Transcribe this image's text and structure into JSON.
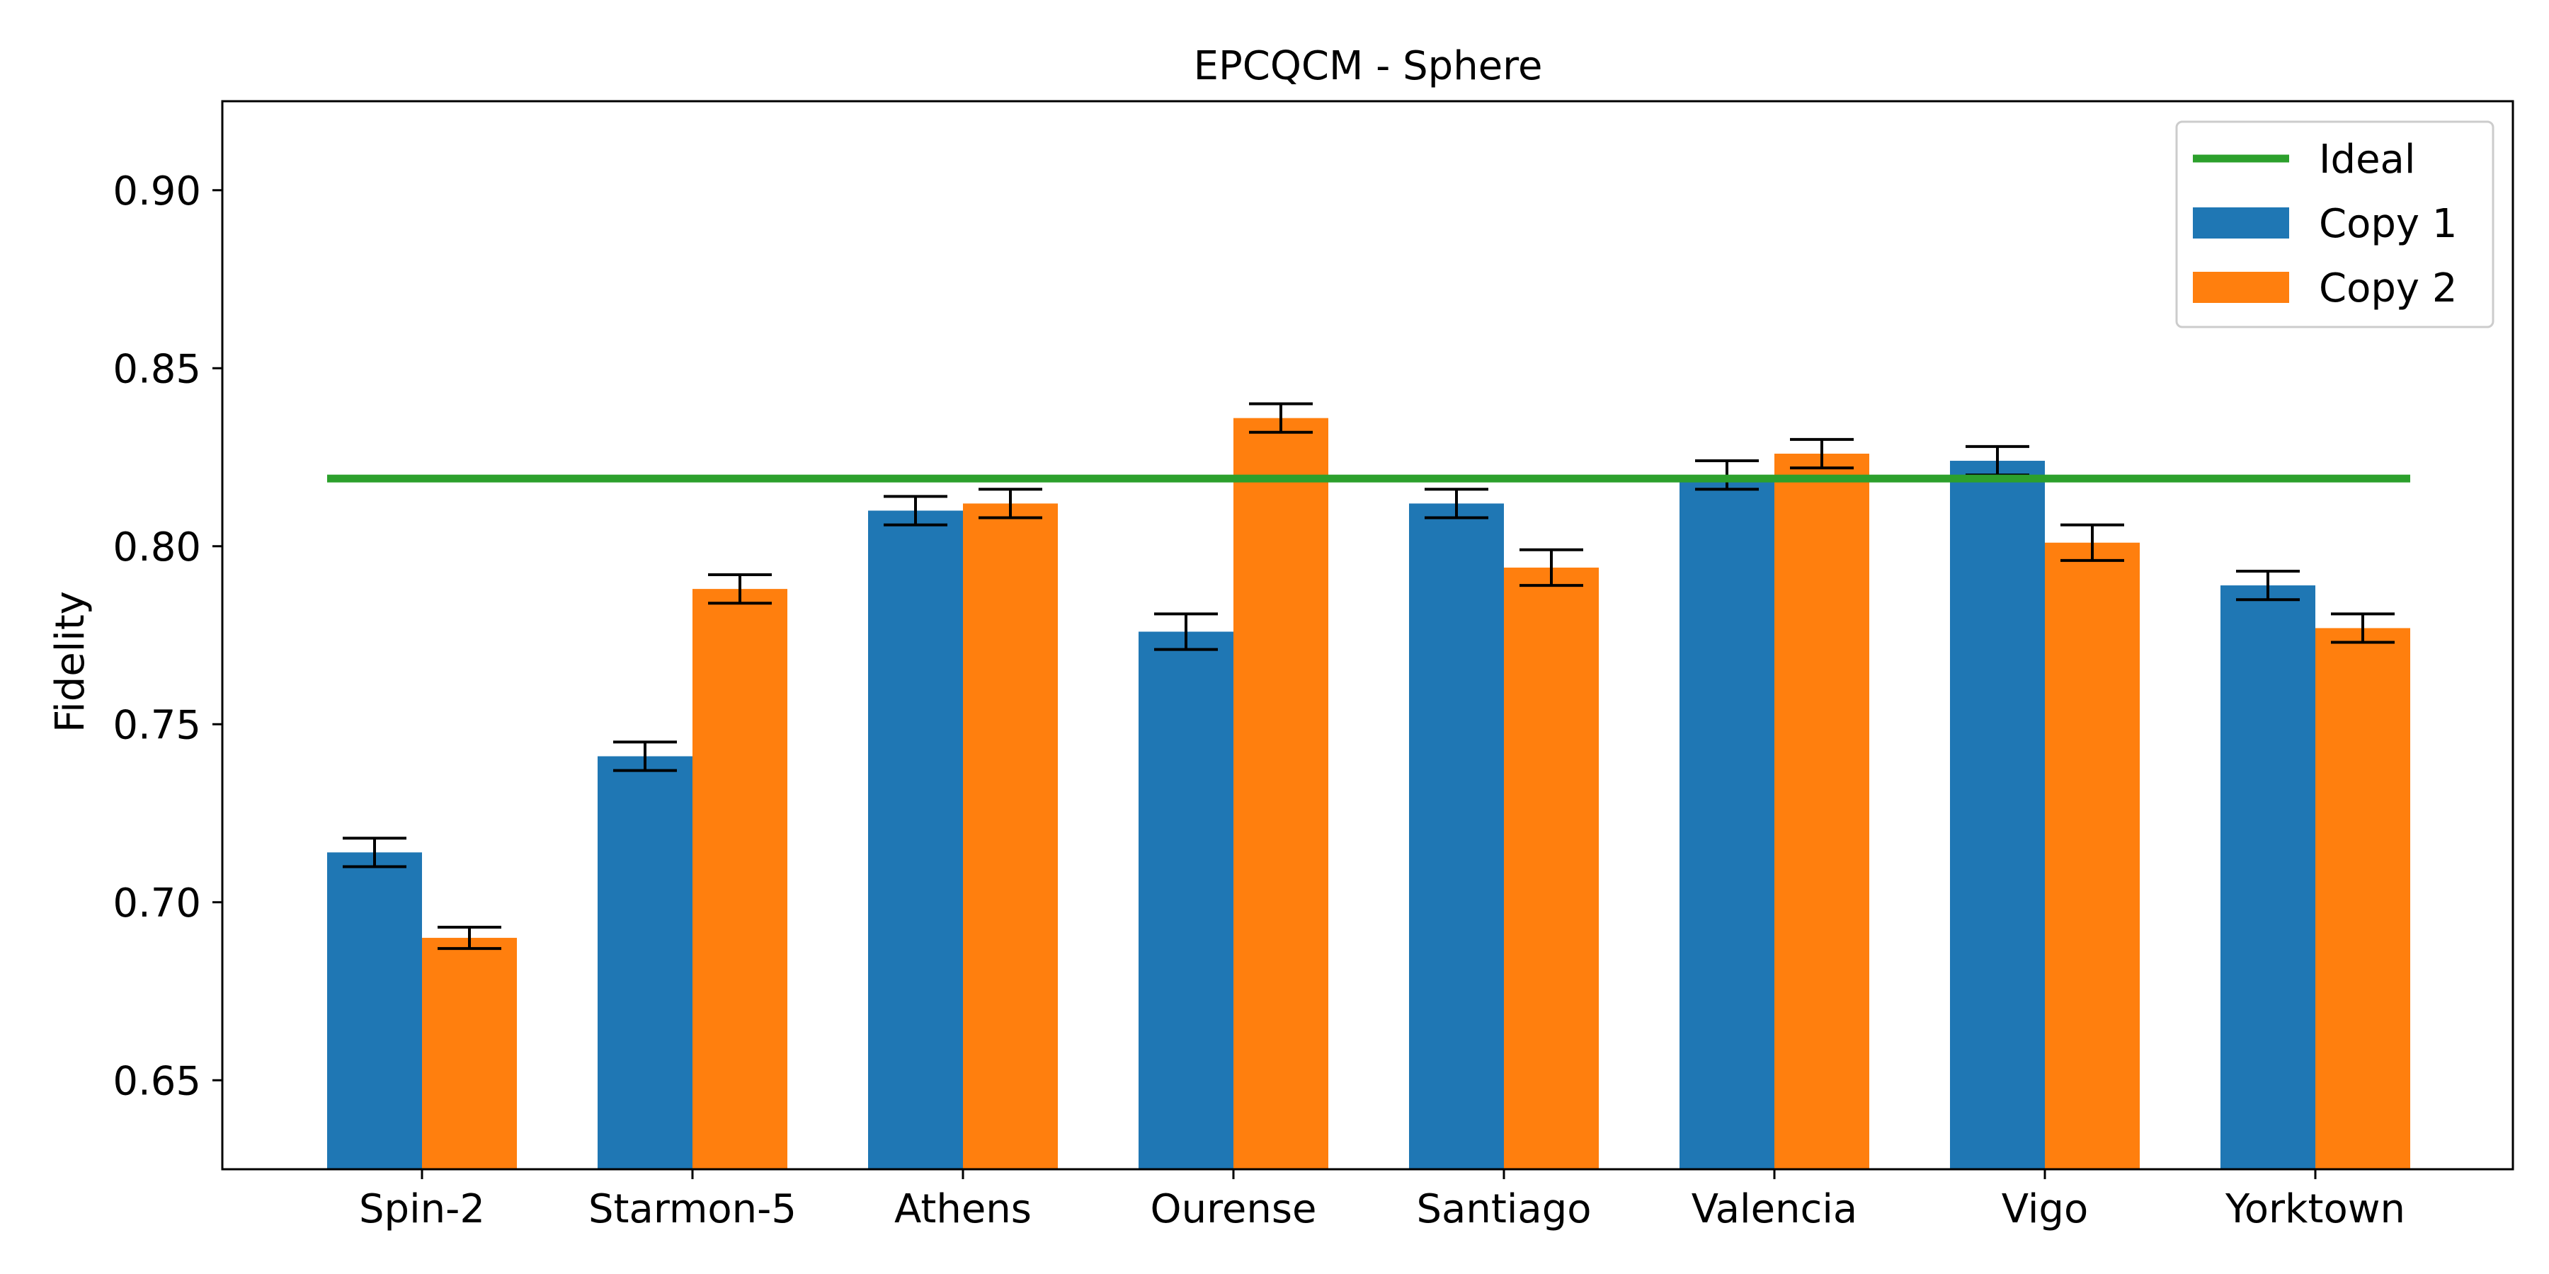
{
  "chart_data": {
    "type": "bar",
    "title": "EPCQCM - Sphere",
    "xlabel": "",
    "ylabel": "Fidelity",
    "ylim": [
      0.625,
      0.925
    ],
    "yticks": [
      "0.65",
      "0.70",
      "0.75",
      "0.80",
      "0.85",
      "0.90"
    ],
    "grid": false,
    "legend_position": "top-right",
    "categories": [
      "Spin-2",
      "Starmon-5",
      "Athens",
      "Ourense",
      "Santiago",
      "Valencia",
      "Vigo",
      "Yorktown"
    ],
    "series": [
      {
        "name": "Copy 1",
        "color": "#1f77b4",
        "values": [
          0.714,
          0.741,
          0.81,
          0.776,
          0.812,
          0.82,
          0.824,
          0.789
        ],
        "errors": [
          0.004,
          0.004,
          0.004,
          0.005,
          0.004,
          0.004,
          0.004,
          0.004
        ]
      },
      {
        "name": "Copy 2",
        "color": "#ff7f0e",
        "values": [
          0.69,
          0.788,
          0.812,
          0.836,
          0.794,
          0.826,
          0.801,
          0.777
        ],
        "errors": [
          0.003,
          0.004,
          0.004,
          0.004,
          0.005,
          0.004,
          0.005,
          0.004
        ]
      }
    ],
    "reference_line": {
      "name": "Ideal",
      "color": "#2ca02c",
      "value": 0.819
    }
  }
}
